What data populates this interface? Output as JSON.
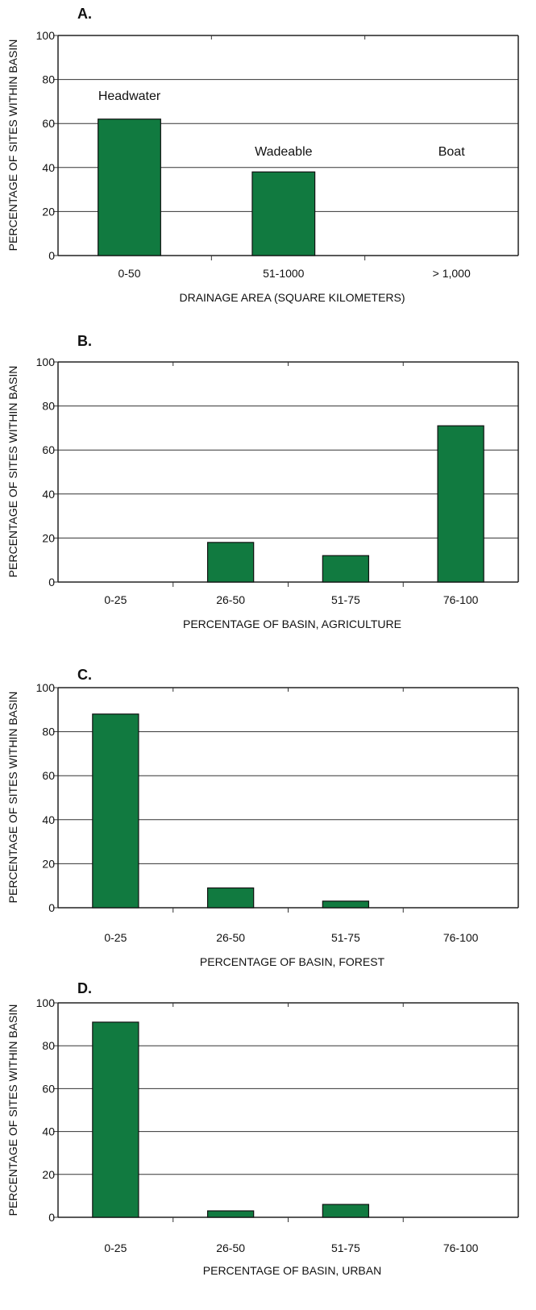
{
  "colors": {
    "bar": "#117a40"
  },
  "chart_data": [
    {
      "type": "bar",
      "panel": "A.",
      "categories": [
        "0-50",
        "51-1000",
        "> 1,000"
      ],
      "values": [
        62,
        38,
        0
      ],
      "annotations": [
        "Headwater",
        "Wadeable",
        "Boat"
      ],
      "xlabel": "DRAINAGE AREA (SQUARE KILOMETERS)",
      "ylabel": "PERCENTAGE OF SITES WITHIN BASIN",
      "ylim": [
        0,
        100
      ],
      "yticks": [
        0,
        20,
        40,
        60,
        80,
        100
      ],
      "grid": true
    },
    {
      "type": "bar",
      "panel": "B.",
      "categories": [
        "0-25",
        "26-50",
        "51-75",
        "76-100"
      ],
      "values": [
        0,
        18,
        12,
        71
      ],
      "xlabel": "PERCENTAGE OF BASIN, AGRICULTURE",
      "ylabel": "PERCENTAGE OF SITES WITHIN BASIN",
      "ylim": [
        0,
        100
      ],
      "yticks": [
        0,
        20,
        40,
        60,
        80,
        100
      ],
      "grid": true
    },
    {
      "type": "bar",
      "panel": "C.",
      "categories": [
        "0-25",
        "26-50",
        "51-75",
        "76-100"
      ],
      "values": [
        88,
        9,
        3,
        0
      ],
      "xlabel": "PERCENTAGE OF BASIN, FOREST",
      "ylabel": "PERCENTAGE OF SITES WITHIN BASIN",
      "ylim": [
        0,
        100
      ],
      "yticks": [
        0,
        20,
        40,
        60,
        80,
        100
      ],
      "grid": true
    },
    {
      "type": "bar",
      "panel": "D.",
      "categories": [
        "0-25",
        "26-50",
        "51-75",
        "76-100"
      ],
      "values": [
        91,
        3,
        6,
        0
      ],
      "xlabel": "PERCENTAGE OF BASIN, URBAN",
      "ylabel": "PERCENTAGE OF SITES WITHIN BASIN",
      "ylim": [
        0,
        100
      ],
      "yticks": [
        0,
        20,
        40,
        60,
        80,
        100
      ],
      "grid": true
    }
  ]
}
